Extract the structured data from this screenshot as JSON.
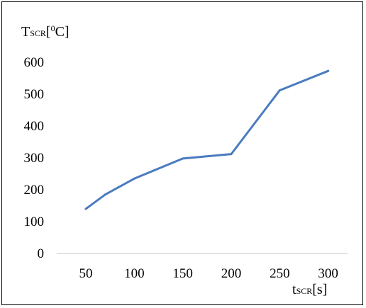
{
  "chart_data": {
    "type": "line",
    "xlabel": {
      "main": "t",
      "sub": "SCR",
      "unit": "[s]"
    },
    "ylabel": {
      "main": "T",
      "sub": "SCR",
      "unit_open": "[",
      "unit_sup": "0",
      "unit_close": "C]"
    },
    "x_ticks": [
      50,
      100,
      150,
      200,
      250,
      300
    ],
    "y_ticks": [
      0,
      100,
      200,
      300,
      400,
      500,
      600
    ],
    "xlim": [
      20,
      320
    ],
    "ylim": [
      0,
      600
    ],
    "grid": false,
    "colors": {
      "line": "#4a7bbf",
      "axis": "#d9d9d9"
    },
    "series": [
      {
        "x": [
          50,
          70,
          100,
          150,
          200,
          250,
          300
        ],
        "y": [
          140,
          185,
          235,
          298,
          312,
          512,
          573
        ]
      }
    ]
  }
}
